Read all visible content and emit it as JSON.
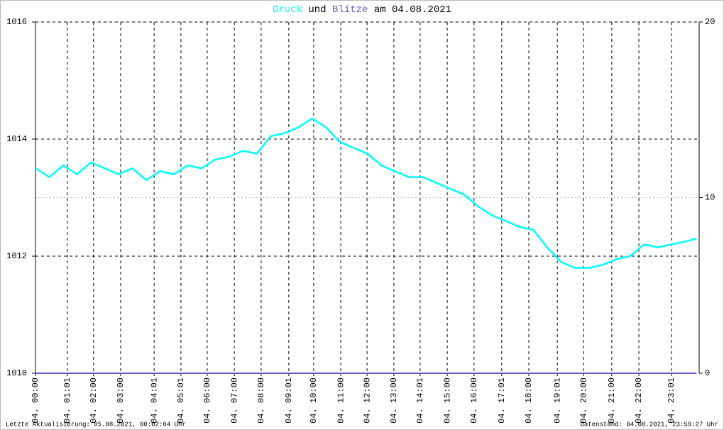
{
  "chart_data": {
    "type": "line",
    "title_joiner": "und",
    "title_suffix": "am 04.08.2021",
    "footer_left": "Letzte Aktualisierung: 05.08.2021, 00:02:04 Uhr",
    "footer_right": "Datenstand: 04.08.2021, 23:59:27 Uhr",
    "xlim": [
      0,
      24
    ],
    "xticks": [
      {
        "value": 0,
        "label": "04. 00:00"
      },
      {
        "value": 1.15,
        "label": "04. 01:01"
      },
      {
        "value": 2.1,
        "label": "04. 02:00"
      },
      {
        "value": 3.08,
        "label": "04. 03:00"
      },
      {
        "value": 4.29,
        "label": "04. 04:01"
      },
      {
        "value": 5.26,
        "label": "04. 05:01"
      },
      {
        "value": 6.21,
        "label": "04. 06:00"
      },
      {
        "value": 7.19,
        "label": "04. 07:00"
      },
      {
        "value": 8.16,
        "label": "04. 08:00"
      },
      {
        "value": 9.16,
        "label": "04. 09:01"
      },
      {
        "value": 10.06,
        "label": "04. 10:00"
      },
      {
        "value": 11.04,
        "label": "04. 11:00"
      },
      {
        "value": 11.99,
        "label": "04. 12:00"
      },
      {
        "value": 12.96,
        "label": "04. 13:00"
      },
      {
        "value": 13.91,
        "label": "04. 14:01"
      },
      {
        "value": 14.89,
        "label": "04. 15:00"
      },
      {
        "value": 15.86,
        "label": "04. 16:00"
      },
      {
        "value": 16.86,
        "label": "04. 17:01"
      },
      {
        "value": 17.84,
        "label": "04. 18:00"
      },
      {
        "value": 18.87,
        "label": "04. 19:01"
      },
      {
        "value": 19.82,
        "label": "04. 20:00"
      },
      {
        "value": 20.84,
        "label": "04. 21:00"
      },
      {
        "value": 21.82,
        "label": "04. 22:00"
      },
      {
        "value": 23.0,
        "label": "04. 23:01"
      }
    ],
    "ylim": [
      1010,
      1016
    ],
    "yticks": [
      1010,
      1012,
      1014,
      1016
    ],
    "y2lim": [
      0,
      20
    ],
    "y2ticks": [
      0,
      10,
      20
    ],
    "grid": true,
    "series": [
      {
        "name": "Druck",
        "color": "#00ffff",
        "x": [
          0,
          0.5,
          1,
          1.5,
          2,
          2.5,
          3,
          3.5,
          4,
          4.5,
          5,
          5.5,
          6,
          6.5,
          7,
          7.5,
          8,
          8.5,
          9,
          9.5,
          10,
          10.5,
          11,
          11.5,
          12,
          12.5,
          13,
          13.5,
          14,
          14.5,
          15,
          15.5,
          16,
          16.5,
          17,
          17.5,
          18,
          18.5,
          19,
          19.5,
          20,
          20.5,
          21,
          21.5,
          22,
          22.5,
          23,
          23.5,
          23.9
        ],
        "values": [
          1013.5,
          1013.35,
          1013.55,
          1013.4,
          1013.6,
          1013.5,
          1013.4,
          1013.5,
          1013.3,
          1013.45,
          1013.4,
          1013.55,
          1013.5,
          1013.65,
          1013.7,
          1013.8,
          1013.75,
          1014.05,
          1014.1,
          1014.2,
          1014.35,
          1014.2,
          1013.95,
          1013.85,
          1013.75,
          1013.55,
          1013.45,
          1013.35,
          1013.35,
          1013.25,
          1013.15,
          1013.05,
          1012.85,
          1012.7,
          1012.6,
          1012.5,
          1012.45,
          1012.15,
          1011.9,
          1011.8,
          1011.8,
          1011.85,
          1011.95,
          1012.0,
          1012.2,
          1012.15,
          1012.2,
          1012.25,
          1012.3
        ]
      },
      {
        "name": "Blitze",
        "color": "#6a5acd",
        "axis": "y2",
        "x": [
          0,
          23.9
        ],
        "values": [
          0,
          0
        ]
      }
    ]
  }
}
